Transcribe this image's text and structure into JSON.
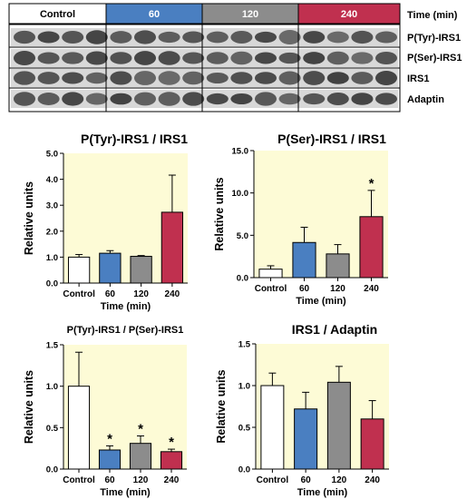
{
  "blot": {
    "header": [
      {
        "label": "Control",
        "color": "#ffffff",
        "text_color": "#000000"
      },
      {
        "label": "60",
        "color": "#4a7fc1",
        "text_color": "#ffffff"
      },
      {
        "label": "120",
        "color": "#8c8c8c",
        "text_color": "#ffffff"
      },
      {
        "label": "240",
        "color": "#c0304f",
        "text_color": "#ffffff"
      }
    ],
    "time_label": "Time (min)",
    "rows": [
      "P(Tyr)-IRS1",
      "P(Ser)-IRS1",
      "IRS1",
      "Adaptin"
    ]
  },
  "colors": {
    "plot_bg": "#fdfbd6",
    "control": "#ffffff",
    "t60": "#4a7fc1",
    "t120": "#8c8c8c",
    "t240": "#c0304f"
  },
  "chart_data": [
    {
      "type": "bar",
      "title": "P(Tyr)-IRS1 / IRS1",
      "xlabel": "Time (min)",
      "ylabel": "Relative units",
      "categories": [
        "Control",
        "60",
        "120",
        "240"
      ],
      "values": [
        1.0,
        1.15,
        1.03,
        2.73
      ],
      "errors": [
        0.1,
        0.1,
        0.03,
        1.43
      ],
      "significant": [
        false,
        false,
        false,
        false
      ],
      "ylim": [
        0,
        5
      ],
      "yticks": [
        "0.0",
        "1.0",
        "2.0",
        "3.0",
        "4.0",
        "5.0"
      ],
      "grid": false
    },
    {
      "type": "bar",
      "title": "P(Ser)-IRS1 / IRS1",
      "xlabel": "Time (min)",
      "ylabel": "Relative units",
      "categories": [
        "Control",
        "60",
        "120",
        "240"
      ],
      "values": [
        1.0,
        4.15,
        2.8,
        7.2
      ],
      "errors": [
        0.4,
        1.8,
        1.1,
        3.1
      ],
      "significant": [
        false,
        false,
        false,
        true
      ],
      "ylim": [
        0,
        15
      ],
      "yticks": [
        "0.0",
        "5.0",
        "10.0",
        "15.0"
      ],
      "grid": false
    },
    {
      "type": "bar",
      "title": "P(Tyr)-IRS1 / P(Ser)-IRS1",
      "xlabel": "Time (min)",
      "ylabel": "Relative units",
      "categories": [
        "Control",
        "60",
        "120",
        "240"
      ],
      "values": [
        1.0,
        0.23,
        0.31,
        0.21
      ],
      "errors": [
        0.41,
        0.05,
        0.09,
        0.03
      ],
      "significant": [
        false,
        true,
        true,
        true
      ],
      "ylim": [
        0,
        1.5
      ],
      "yticks": [
        "0.0",
        "0.5",
        "1.0",
        "1.5"
      ],
      "grid": false
    },
    {
      "type": "bar",
      "title": "IRS1 / Adaptin",
      "xlabel": "Time (min)",
      "ylabel": "Relative units",
      "categories": [
        "Control",
        "60",
        "120",
        "240"
      ],
      "values": [
        1.0,
        0.72,
        1.04,
        0.6
      ],
      "errors": [
        0.15,
        0.2,
        0.19,
        0.22
      ],
      "significant": [
        false,
        false,
        false,
        false
      ],
      "ylim": [
        0,
        1.5
      ],
      "yticks": [
        "0.0",
        "0.5",
        "1.0",
        "1.5"
      ],
      "grid": false
    }
  ],
  "sig_marker": "*"
}
